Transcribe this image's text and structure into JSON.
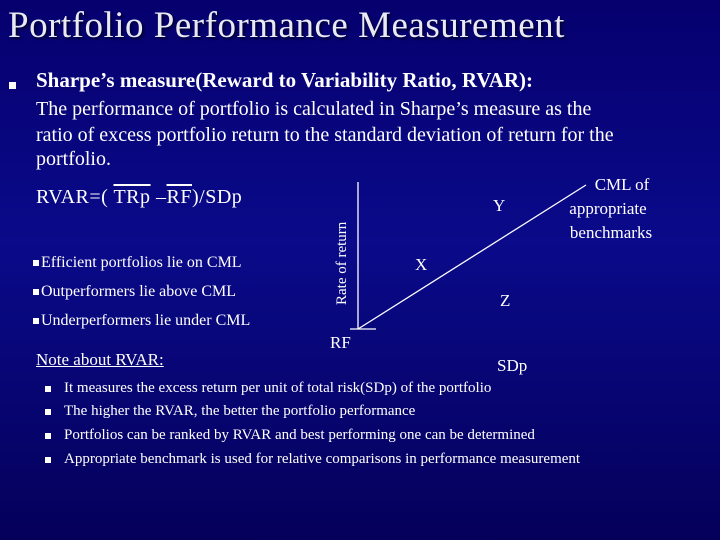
{
  "slide": {
    "title": "Portfolio Performance Measurement",
    "heading": "Sharpe’s measure(Reward to Variability Ratio, RVAR):",
    "body_lines": [
      "The performance of portfolio is calculated in Sharpe’s measure as the",
      "ratio of excess portfolio return to the standard deviation of return for the",
      "portfolio."
    ],
    "formula": {
      "prefix": "RVAR=( ",
      "trp": "TRp",
      "dash": " –",
      "rf": "RF",
      "suffix": ")/SDp"
    },
    "sub_items": [
      "Efficient portfolios lie on CML",
      "Outperformers lie above CML",
      "Underperformers lie under CML"
    ],
    "note_label": "Note about RVAR:",
    "note_items": [
      "It measures the excess return per unit of total risk(SDp) of the portfolio",
      "The higher the RVAR, the better the portfolio performance",
      "Portfolios can be ranked by RVAR and best performing one can be determined",
      "Appropriate benchmark is used for relative comparisons in performance measurement"
    ]
  },
  "diagram": {
    "y_axis_label": "Rate of return",
    "x_axis_label": "SDp",
    "intercept_label": "RF",
    "line_label": [
      "CML of",
      "appropriate",
      "benchmarks"
    ],
    "points": [
      "Y",
      "X",
      "Z"
    ]
  },
  "colors": {
    "background_top": "#06006e",
    "background_bottom": "#04005a",
    "text": "#ffffff"
  }
}
